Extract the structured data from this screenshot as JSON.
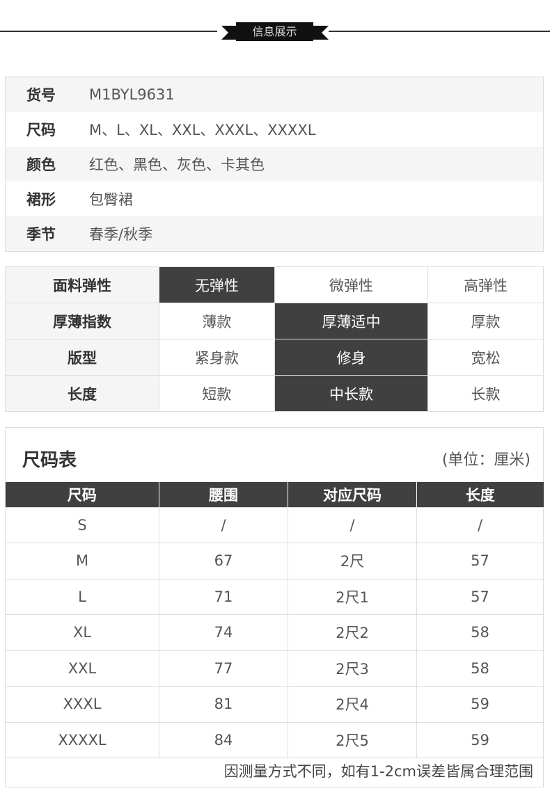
{
  "banner": {
    "title": "信息展示"
  },
  "info": [
    {
      "key": "货号",
      "value": "M1BYL9631"
    },
    {
      "key": "尺码",
      "value": "M、L、XL、XXL、XXXL、XXXXL"
    },
    {
      "key": "颜色",
      "value": "红色、黑色、灰色、卡其色"
    },
    {
      "key": "裙形",
      "value": "包臀裙"
    },
    {
      "key": "季节",
      "value": "春季/秋季"
    }
  ],
  "attributes": [
    {
      "label": "面料弹性",
      "options": [
        "无弹性",
        "微弹性",
        "高弹性"
      ],
      "selected": 0
    },
    {
      "label": "厚薄指数",
      "options": [
        "薄款",
        "厚薄适中",
        "厚款"
      ],
      "selected": 1
    },
    {
      "label": "版型",
      "options": [
        "紧身款",
        "修身",
        "宽松"
      ],
      "selected": 1
    },
    {
      "label": "长度",
      "options": [
        "短款",
        "中长款",
        "长款"
      ],
      "selected": 1
    }
  ],
  "size_chart": {
    "title": "尺码表",
    "unit": "(单位：厘米)",
    "headers": [
      "尺码",
      "腰围",
      "对应尺码",
      "长度"
    ],
    "rows": [
      [
        "S",
        "/",
        "/",
        "/"
      ],
      [
        "M",
        "67",
        "2尺",
        "57"
      ],
      [
        "L",
        "71",
        "2尺1",
        "57"
      ],
      [
        "XL",
        "74",
        "2尺2",
        "58"
      ],
      [
        "XXL",
        "77",
        "2尺3",
        "58"
      ],
      [
        "XXXL",
        "81",
        "2尺4",
        "59"
      ],
      [
        "XXXXL",
        "84",
        "2尺5",
        "59"
      ]
    ],
    "note": "因测量方式不同，如有1-2cm误差皆属合理范围"
  },
  "colors": {
    "selected_bg": "#404040",
    "stripe": "#f5f5f5"
  }
}
